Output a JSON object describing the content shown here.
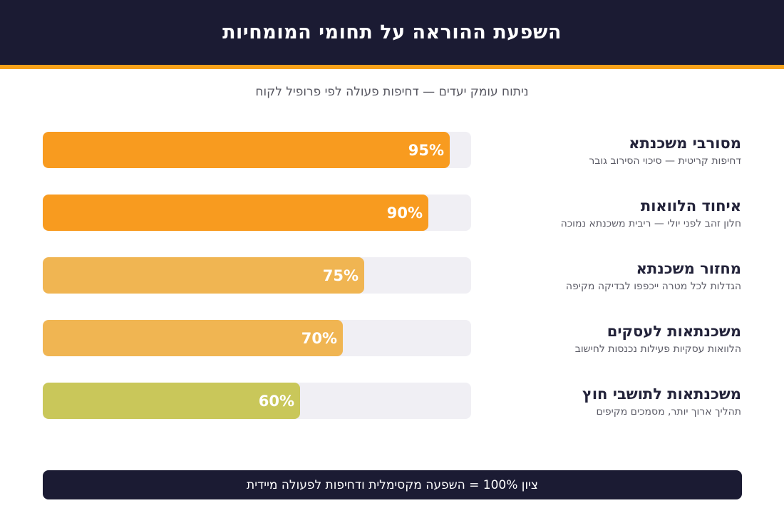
{
  "header": {
    "title": "השפעת ההוראה על תחומי המומחיות"
  },
  "subtitle": "ניתוח עומק יעדים — דחיפות פעולה לפי פרופיל לקוח",
  "chart_data": {
    "type": "bar",
    "orientation": "horizontal",
    "title": "השפעת ההוראה על תחומי המומחיות",
    "subtitle": "ניתוח עומק יעדים — דחיפות פעולה לפי פרופיל לקוח",
    "xlim": [
      0,
      100
    ],
    "grid": false,
    "legend": "none",
    "categories": [
      "מסורבי משכנתא",
      "איחוד הלוואות",
      "מחזור משכנתא",
      "משכנתאות לעסקים",
      "משכנתאות לתושבי חוץ"
    ],
    "descriptions": [
      "דחיפות קריטית — סיכוי הסירוב גובר",
      "חלון זהב לפני יולי — ריבית משכנתא נמוכה",
      "הגדלות לכל מטרה ייכפפו לבדיקה מקיפה",
      "הלוואות עסקיות פעילות נכנסות לחישוב",
      "תהליך ארוך יותר, מסמכים מקיפים"
    ],
    "values": [
      95,
      90,
      75,
      70,
      60
    ],
    "value_labels": [
      "95%",
      "90%",
      "75%",
      "70%",
      "60%"
    ],
    "colors": [
      "#f89b1f",
      "#f89b1f",
      "#f0b552",
      "#f0b552",
      "#c9c75a"
    ]
  },
  "colors": {
    "header_bg": "#1b1b33",
    "accent": "#f7a21b",
    "track": "#f0eff4"
  },
  "footer": {
    "text": "ציון 100% = השפעה מקסימלית ודחיפות לפעולה מיידית"
  }
}
